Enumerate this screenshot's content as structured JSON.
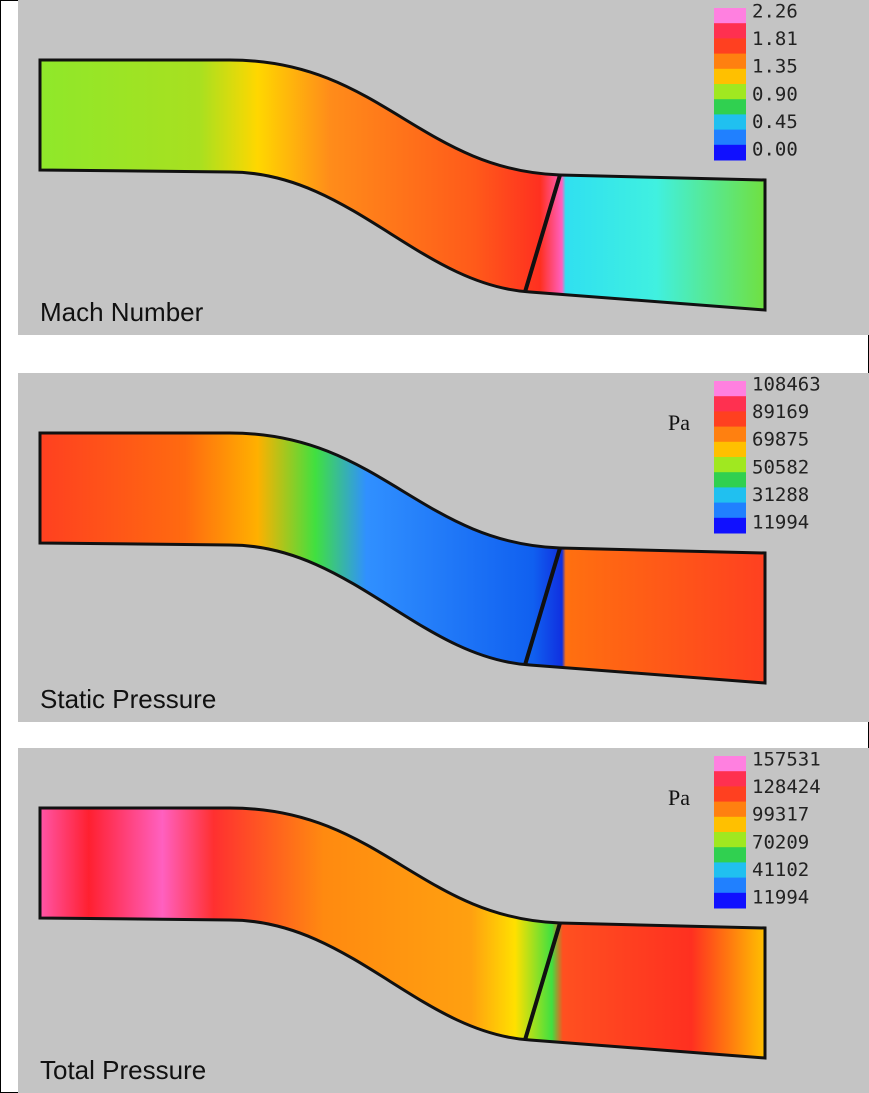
{
  "panels": [
    {
      "label": "Mach Number",
      "legend_labels": [
        "2.26",
        "1.81",
        "1.35",
        "0.90",
        "0.45",
        "0.00"
      ]
    },
    {
      "label": "Static Pressure",
      "unit": "Pa",
      "legend_labels": [
        "108463",
        "89169",
        "69875",
        "50582",
        "31288",
        "11994"
      ]
    },
    {
      "label": "Total Pressure",
      "unit": "Pa",
      "legend_labels": [
        "157531",
        "128424",
        "99317",
        "70209",
        "41102",
        "11994"
      ]
    }
  ]
}
